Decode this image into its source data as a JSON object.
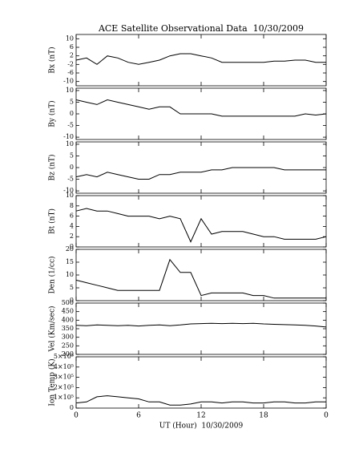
{
  "chart_data": [
    {
      "type": "line",
      "title": "ACE Satellite Observational Data  10/30/2009",
      "ylabel": "Bx (nT)",
      "color": "#000000",
      "x": [
        0,
        1,
        2,
        3,
        4,
        5,
        6,
        7,
        8,
        9,
        10,
        11,
        12,
        13,
        14,
        15,
        16,
        17,
        18,
        19,
        20,
        21,
        22,
        23,
        24
      ],
      "values": [
        0,
        1,
        -2,
        2,
        1,
        -1,
        -2,
        -1,
        0,
        2,
        3,
        3,
        2,
        1,
        -1,
        -1,
        -1,
        -1,
        -1,
        -0.5,
        -0.5,
        0,
        0,
        -1,
        -1
      ],
      "ylim": [
        -12,
        12
      ],
      "yticks": [
        -10,
        -6,
        -2,
        2,
        6,
        10
      ]
    },
    {
      "type": "line",
      "ylabel": "By (nT)",
      "color": "#000000",
      "x": [
        0,
        1,
        2,
        3,
        4,
        5,
        6,
        7,
        8,
        9,
        10,
        11,
        12,
        13,
        14,
        15,
        16,
        17,
        18,
        19,
        20,
        21,
        22,
        23,
        24
      ],
      "values": [
        6,
        5,
        4,
        6,
        5,
        4,
        3,
        2,
        3,
        3,
        0,
        0,
        0,
        0,
        -1,
        -1,
        -1,
        -1,
        -1,
        -1,
        -1,
        -1,
        0,
        -0.5,
        0
      ],
      "ylim": [
        -11,
        11
      ],
      "yticks": [
        -10,
        -5,
        0,
        5,
        10
      ]
    },
    {
      "type": "line",
      "ylabel": "Bz (nT)",
      "color": "#000000",
      "x": [
        0,
        1,
        2,
        3,
        4,
        5,
        6,
        7,
        8,
        9,
        10,
        11,
        12,
        13,
        14,
        15,
        16,
        17,
        18,
        19,
        20,
        21,
        22,
        23,
        24
      ],
      "values": [
        -4,
        -3,
        -4,
        -2,
        -3,
        -4,
        -5,
        -5,
        -3,
        -3,
        -2,
        -2,
        -2,
        -1,
        -1,
        0,
        0,
        0,
        0,
        0,
        -1,
        -1,
        -1,
        -1,
        -1
      ],
      "ylim": [
        -11,
        11
      ],
      "yticks": [
        -10,
        -5,
        0,
        5,
        10
      ]
    },
    {
      "type": "line",
      "ylabel": "Bt (nT)",
      "color": "#000000",
      "x": [
        0,
        1,
        2,
        3,
        4,
        5,
        6,
        7,
        8,
        9,
        10,
        11,
        12,
        13,
        14,
        15,
        16,
        17,
        18,
        19,
        20,
        21,
        22,
        23,
        24
      ],
      "values": [
        7,
        7.5,
        7,
        7,
        6.5,
        6,
        6,
        6,
        5.5,
        6,
        5.5,
        1,
        5.5,
        2.5,
        3,
        3,
        3,
        2.5,
        2,
        2,
        1.5,
        1.5,
        1.5,
        1.5,
        2
      ],
      "ylim": [
        0,
        10
      ],
      "yticks": [
        0,
        2,
        4,
        6,
        8,
        10
      ]
    },
    {
      "type": "line",
      "ylabel": "Den (1/cc)",
      "color": "#000000",
      "x": [
        0,
        1,
        2,
        3,
        4,
        5,
        6,
        7,
        8,
        9,
        10,
        11,
        12,
        13,
        14,
        15,
        16,
        17,
        18,
        19,
        20,
        21,
        22,
        23,
        24
      ],
      "values": [
        8,
        7,
        6,
        5,
        4,
        4,
        4,
        4,
        4,
        16,
        11,
        11,
        2,
        3,
        3,
        3,
        3,
        2,
        2,
        1,
        1,
        1,
        1,
        1,
        1
      ],
      "ylim": [
        0,
        20
      ],
      "yticks": [
        0,
        5,
        10,
        15,
        20
      ]
    },
    {
      "type": "line",
      "ylabel": "Vel (Km/sec)",
      "color": "#000000",
      "x": [
        0,
        1,
        2,
        3,
        4,
        5,
        6,
        7,
        8,
        9,
        10,
        11,
        12,
        13,
        14,
        15,
        16,
        17,
        18,
        19,
        20,
        21,
        22,
        23,
        24
      ],
      "values": [
        370,
        368,
        372,
        370,
        368,
        370,
        366,
        370,
        372,
        368,
        372,
        378,
        380,
        382,
        380,
        382,
        380,
        382,
        378,
        376,
        374,
        372,
        370,
        366,
        360
      ],
      "ylim": [
        200,
        500
      ],
      "yticks": [
        200,
        250,
        300,
        350,
        400,
        450,
        500
      ]
    },
    {
      "type": "line",
      "ylabel": "Ion Temp (K)",
      "xlabel": "UT (Hour)  10/30/2009",
      "color": "#000000",
      "x": [
        0,
        1,
        2,
        3,
        4,
        5,
        6,
        7,
        8,
        9,
        10,
        11,
        12,
        13,
        14,
        15,
        16,
        17,
        18,
        19,
        20,
        21,
        22,
        23,
        24
      ],
      "values": [
        50000,
        60000,
        110000,
        120000,
        110000,
        100000,
        90000,
        60000,
        60000,
        30000,
        30000,
        40000,
        60000,
        60000,
        50000,
        60000,
        60000,
        50000,
        50000,
        60000,
        60000,
        50000,
        50000,
        60000,
        60000
      ],
      "ylim": [
        0,
        500000
      ],
      "yticks": [
        0,
        {
          "value": 100000,
          "label": "1×10⁵"
        },
        {
          "value": 200000,
          "label": "2×10⁵"
        },
        {
          "value": 300000,
          "label": "3×10⁵"
        },
        {
          "value": 400000,
          "label": "4×10⁵"
        },
        {
          "value": 500000,
          "label": "5×10⁵"
        }
      ],
      "xlim": [
        0,
        24
      ],
      "xticks": [
        0,
        6,
        12,
        18,
        {
          "value": 24,
          "label": "0"
        }
      ]
    }
  ]
}
